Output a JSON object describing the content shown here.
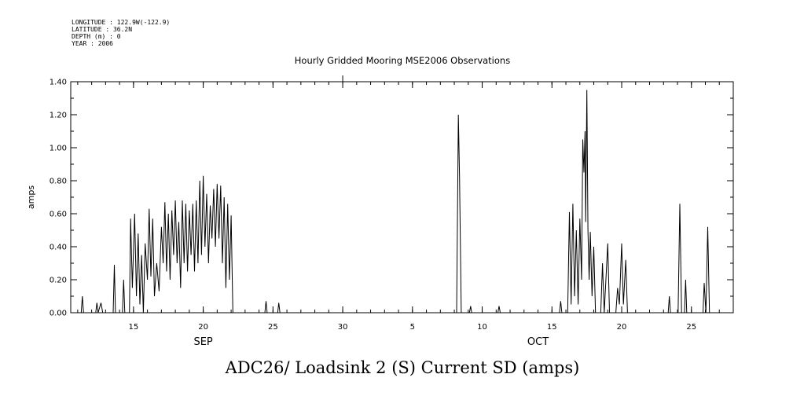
{
  "header": {
    "longitude": "LONGITUDE : 122.9W(-122.9)",
    "latitude": "LATITUDE : 36.2N",
    "depth": "DEPTH (m) : 0",
    "year": "YEAR : 2006"
  },
  "caption": "ADC26/ Loadsink 2 (S) Current SD (amps)",
  "chart_data": {
    "type": "line",
    "title": "Hourly Gridded Mooring MSE2006 Observations",
    "xlabel": "",
    "ylabel": "amps",
    "ylim": [
      0,
      1.4
    ],
    "xlim": [
      "2006-09-10 12:00",
      "2006-10-28 00:00"
    ],
    "y_ticks": [
      "0.00",
      "0.20",
      "0.40",
      "0.60",
      "0.80",
      "1.00",
      "1.20",
      "1.40"
    ],
    "x_ticks": [
      {
        "date": "2006-09-15",
        "label": "15"
      },
      {
        "date": "2006-09-20",
        "label": "20"
      },
      {
        "date": "2006-09-25",
        "label": "25"
      },
      {
        "date": "2006-09-30",
        "label": "30"
      },
      {
        "date": "2006-10-05",
        "label": "5"
      },
      {
        "date": "2006-10-10",
        "label": "10"
      },
      {
        "date": "2006-10-15",
        "label": "15"
      },
      {
        "date": "2006-10-20",
        "label": "20"
      },
      {
        "date": "2006-10-25",
        "label": "25"
      }
    ],
    "month_labels": [
      {
        "date": "2006-09-20",
        "label": "SEP"
      },
      {
        "date": "2006-10-14",
        "label": "OCT"
      }
    ],
    "grid": false,
    "series": [
      {
        "color": "#000000",
        "points": [
          [
            "2006-09-11 06:00",
            0.0
          ],
          [
            "2006-09-11 08:00",
            0.1
          ],
          [
            "2006-09-11 10:00",
            0.0
          ],
          [
            "2006-09-12 07:00",
            0.0
          ],
          [
            "2006-09-12 09:00",
            0.06
          ],
          [
            "2006-09-12 11:00",
            0.0
          ],
          [
            "2006-09-12 16:00",
            0.06
          ],
          [
            "2006-09-12 19:00",
            0.0
          ],
          [
            "2006-09-13 13:00",
            0.0
          ],
          [
            "2006-09-13 15:00",
            0.29
          ],
          [
            "2006-09-13 17:00",
            0.0
          ],
          [
            "2006-09-14 05:00",
            0.0
          ],
          [
            "2006-09-14 07:00",
            0.2
          ],
          [
            "2006-09-14 09:00",
            0.0
          ],
          [
            "2006-09-14 17:00",
            0.0
          ],
          [
            "2006-09-14 19:00",
            0.57
          ],
          [
            "2006-09-14 22:00",
            0.15
          ],
          [
            "2006-09-15 02:00",
            0.6
          ],
          [
            "2006-09-15 05:00",
            0.1
          ],
          [
            "2006-09-15 08:00",
            0.48
          ],
          [
            "2006-09-15 11:00",
            0.05
          ],
          [
            "2006-09-15 14:00",
            0.35
          ],
          [
            "2006-09-15 17:00",
            0.0
          ],
          [
            "2006-09-15 20:00",
            0.42
          ],
          [
            "2006-09-16 00:00",
            0.2
          ],
          [
            "2006-09-16 03:00",
            0.63
          ],
          [
            "2006-09-16 06:00",
            0.22
          ],
          [
            "2006-09-16 09:00",
            0.57
          ],
          [
            "2006-09-16 12:00",
            0.1
          ],
          [
            "2006-09-16 16:00",
            0.3
          ],
          [
            "2006-09-16 20:00",
            0.13
          ],
          [
            "2006-09-17 00:00",
            0.52
          ],
          [
            "2006-09-17 03:00",
            0.3
          ],
          [
            "2006-09-17 06:00",
            0.67
          ],
          [
            "2006-09-17 09:00",
            0.25
          ],
          [
            "2006-09-17 12:00",
            0.6
          ],
          [
            "2006-09-17 15:00",
            0.2
          ],
          [
            "2006-09-17 18:00",
            0.62
          ],
          [
            "2006-09-17 21:00",
            0.35
          ],
          [
            "2006-09-18 00:00",
            0.68
          ],
          [
            "2006-09-18 03:00",
            0.3
          ],
          [
            "2006-09-18 06:00",
            0.55
          ],
          [
            "2006-09-18 09:00",
            0.15
          ],
          [
            "2006-09-18 12:00",
            0.68
          ],
          [
            "2006-09-18 15:00",
            0.3
          ],
          [
            "2006-09-18 18:00",
            0.66
          ],
          [
            "2006-09-18 21:00",
            0.25
          ],
          [
            "2006-09-19 00:00",
            0.62
          ],
          [
            "2006-09-19 03:00",
            0.35
          ],
          [
            "2006-09-19 06:00",
            0.66
          ],
          [
            "2006-09-19 09:00",
            0.25
          ],
          [
            "2006-09-19 12:00",
            0.68
          ],
          [
            "2006-09-19 15:00",
            0.3
          ],
          [
            "2006-09-19 18:00",
            0.8
          ],
          [
            "2006-09-19 21:00",
            0.35
          ],
          [
            "2006-09-20 00:00",
            0.83
          ],
          [
            "2006-09-20 03:00",
            0.4
          ],
          [
            "2006-09-20 06:00",
            0.72
          ],
          [
            "2006-09-20 09:00",
            0.3
          ],
          [
            "2006-09-20 12:00",
            0.65
          ],
          [
            "2006-09-20 15:00",
            0.45
          ],
          [
            "2006-09-20 18:00",
            0.75
          ],
          [
            "2006-09-20 21:00",
            0.4
          ],
          [
            "2006-09-21 00:00",
            0.78
          ],
          [
            "2006-09-21 03:00",
            0.45
          ],
          [
            "2006-09-21 06:00",
            0.77
          ],
          [
            "2006-09-21 09:00",
            0.3
          ],
          [
            "2006-09-21 12:00",
            0.7
          ],
          [
            "2006-09-21 15:00",
            0.15
          ],
          [
            "2006-09-21 18:00",
            0.66
          ],
          [
            "2006-09-21 21:00",
            0.2
          ],
          [
            "2006-09-22 00:00",
            0.59
          ],
          [
            "2006-09-22 03:00",
            0.0
          ],
          [
            "2006-09-24 10:00",
            0.0
          ],
          [
            "2006-09-24 12:00",
            0.07
          ],
          [
            "2006-09-24 14:00",
            0.0
          ],
          [
            "2006-09-25 08:00",
            0.0
          ],
          [
            "2006-09-25 10:00",
            0.06
          ],
          [
            "2006-09-25 12:00",
            0.0
          ],
          [
            "2006-10-08 04:00",
            0.0
          ],
          [
            "2006-10-08 07:00",
            1.2
          ],
          [
            "2006-10-08 09:00",
            0.82
          ],
          [
            "2006-10-08 12:00",
            0.0
          ],
          [
            "2006-10-09 02:00",
            0.0
          ],
          [
            "2006-10-09 04:00",
            0.04
          ],
          [
            "2006-10-09 06:00",
            0.0
          ],
          [
            "2006-10-11 03:00",
            0.0
          ],
          [
            "2006-10-11 05:00",
            0.04
          ],
          [
            "2006-10-11 07:00",
            0.0
          ],
          [
            "2006-10-15 13:00",
            0.0
          ],
          [
            "2006-10-15 15:00",
            0.07
          ],
          [
            "2006-10-15 17:00",
            0.0
          ],
          [
            "2006-10-16 03:00",
            0.0
          ],
          [
            "2006-10-16 06:00",
            0.61
          ],
          [
            "2006-10-16 09:00",
            0.05
          ],
          [
            "2006-10-16 12:00",
            0.66
          ],
          [
            "2006-10-16 15:00",
            0.1
          ],
          [
            "2006-10-16 18:00",
            0.5
          ],
          [
            "2006-10-16 21:00",
            0.05
          ],
          [
            "2006-10-17 00:00",
            0.57
          ],
          [
            "2006-10-17 03:00",
            0.2
          ],
          [
            "2006-10-17 05:00",
            1.05
          ],
          [
            "2006-10-17 07:00",
            0.85
          ],
          [
            "2006-10-17 09:00",
            1.1
          ],
          [
            "2006-10-17 10:00",
            0.55
          ],
          [
            "2006-10-17 12:00",
            1.35
          ],
          [
            "2006-10-17 14:00",
            0.5
          ],
          [
            "2006-10-17 16:00",
            0.2
          ],
          [
            "2006-10-17 18:00",
            0.49
          ],
          [
            "2006-10-17 21:00",
            0.1
          ],
          [
            "2006-10-18 00:00",
            0.4
          ],
          [
            "2006-10-18 03:00",
            0.0
          ],
          [
            "2006-10-18 12:00",
            0.0
          ],
          [
            "2006-10-18 15:00",
            0.3
          ],
          [
            "2006-10-18 18:00",
            0.0
          ],
          [
            "2006-10-19 00:00",
            0.42
          ],
          [
            "2006-10-19 03:00",
            0.0
          ],
          [
            "2006-10-19 14:00",
            0.0
          ],
          [
            "2006-10-19 17:00",
            0.15
          ],
          [
            "2006-10-19 20:00",
            0.05
          ],
          [
            "2006-10-20 00:00",
            0.42
          ],
          [
            "2006-10-20 03:00",
            0.05
          ],
          [
            "2006-10-20 07:00",
            0.32
          ],
          [
            "2006-10-20 10:00",
            0.0
          ],
          [
            "2006-10-23 08:00",
            0.0
          ],
          [
            "2006-10-23 10:00",
            0.1
          ],
          [
            "2006-10-23 12:00",
            0.0
          ],
          [
            "2006-10-24 01:00",
            0.0
          ],
          [
            "2006-10-24 04:00",
            0.66
          ],
          [
            "2006-10-24 07:00",
            0.0
          ],
          [
            "2006-10-24 12:00",
            0.0
          ],
          [
            "2006-10-24 14:00",
            0.2
          ],
          [
            "2006-10-24 16:00",
            0.0
          ],
          [
            "2006-10-25 20:00",
            0.0
          ],
          [
            "2006-10-25 22:00",
            0.18
          ],
          [
            "2006-10-26 01:00",
            0.0
          ],
          [
            "2006-10-26 04:00",
            0.52
          ],
          [
            "2006-10-26 07:00",
            0.0
          ]
        ]
      }
    ]
  }
}
